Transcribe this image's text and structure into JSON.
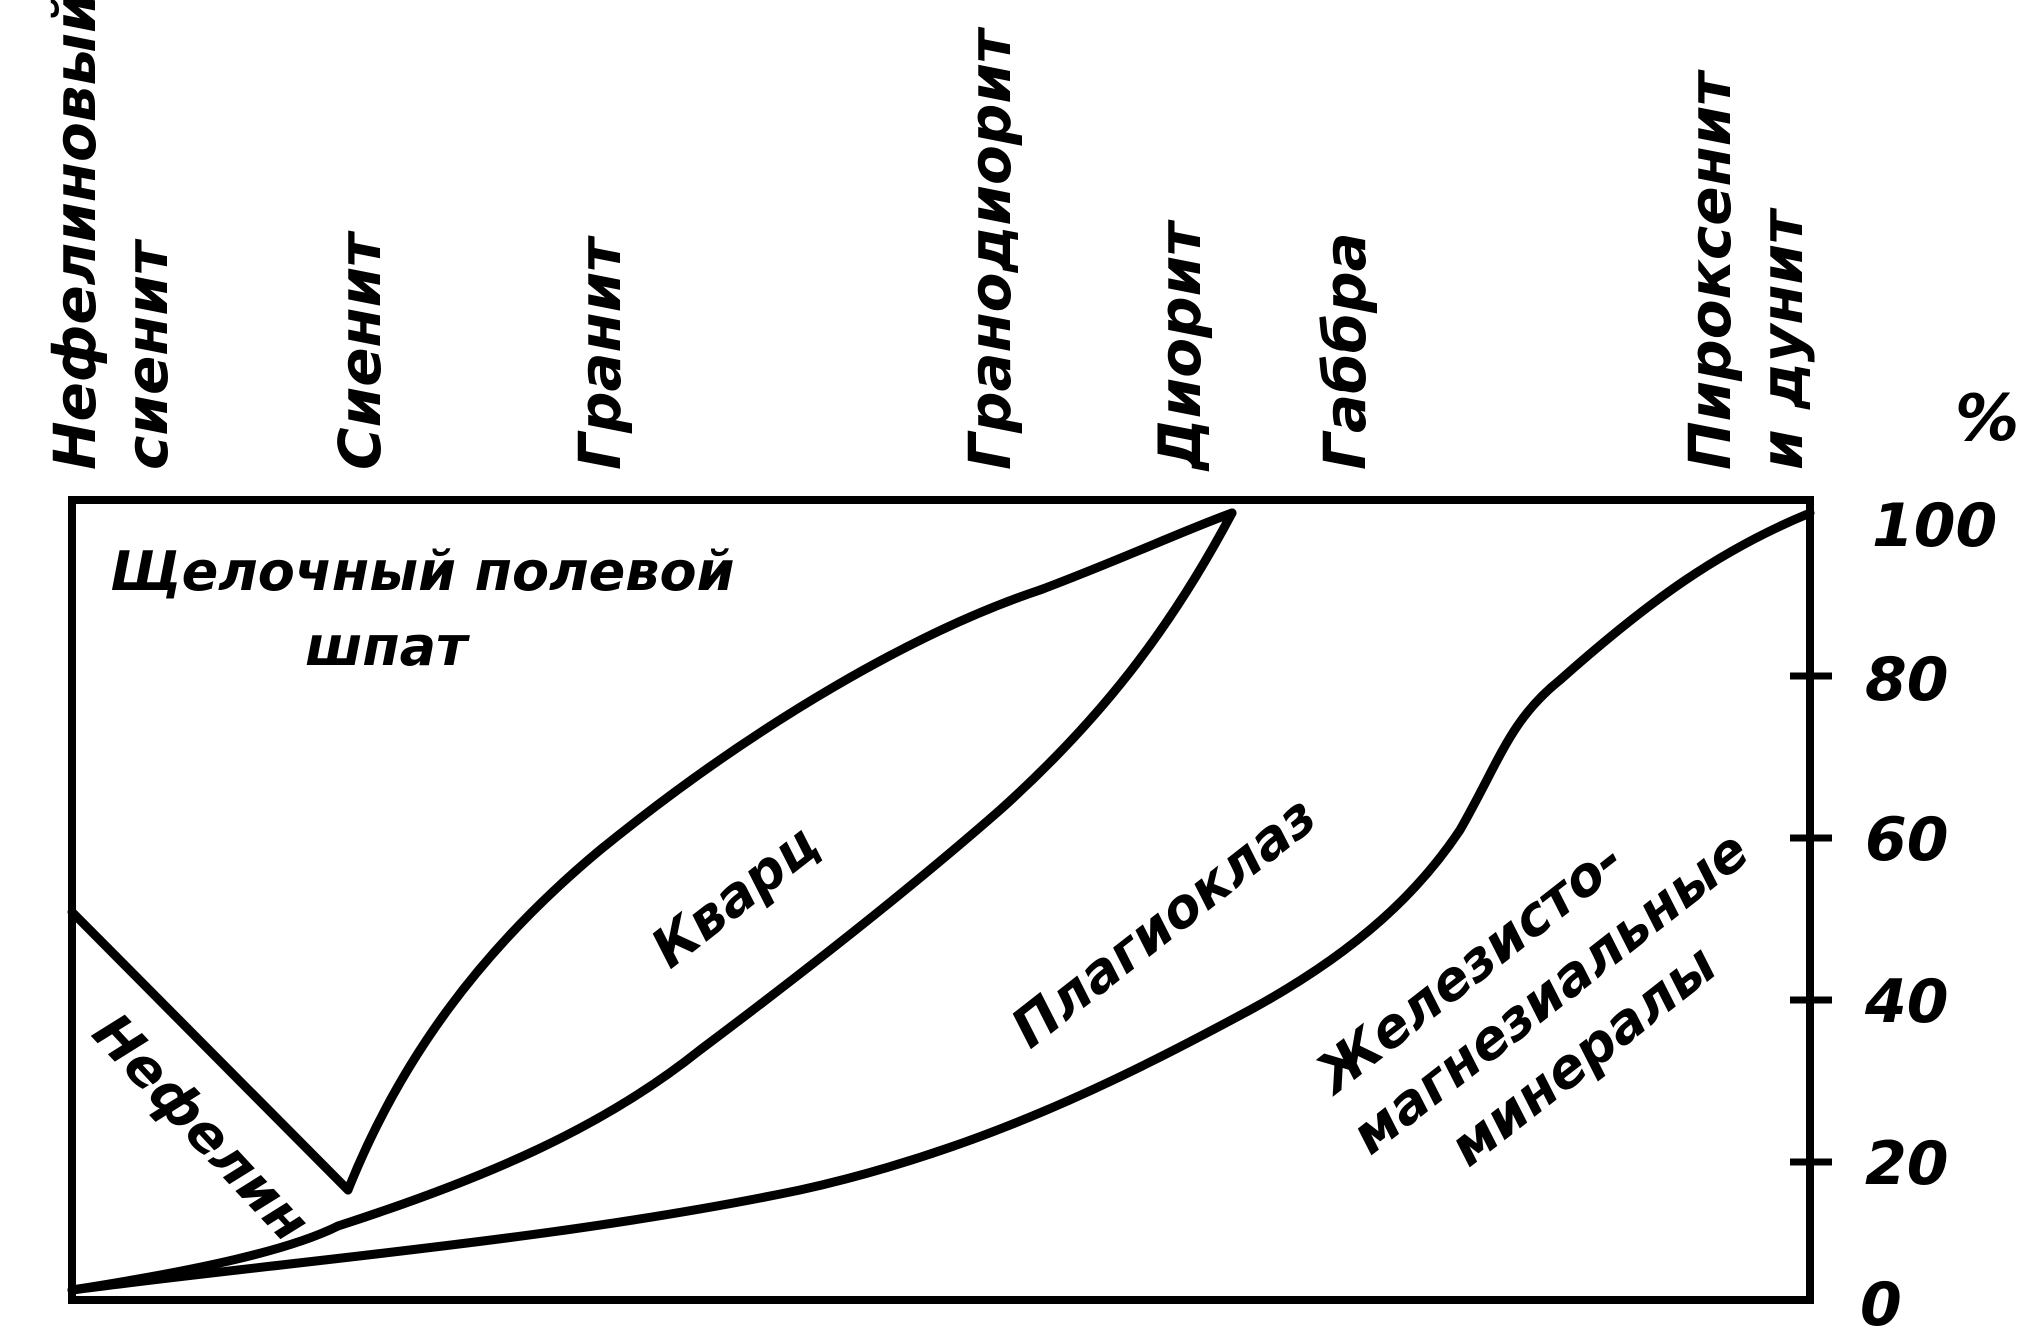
{
  "rock_types": [
    {
      "lines": [
        "Нефелиновый",
        "сиенит"
      ]
    },
    {
      "lines": [
        "Сиенит"
      ]
    },
    {
      "lines": [
        "Гранит"
      ]
    },
    {
      "lines": [
        "Гранодиорит"
      ]
    },
    {
      "lines": [
        "Диорит"
      ]
    },
    {
      "lines": [
        "Габбра"
      ]
    },
    {
      "lines": [
        "Пироксенит",
        "и дунит"
      ]
    }
  ],
  "axis": {
    "unit": "%",
    "ticks": [
      "0",
      "20",
      "40",
      "60",
      "80",
      "100"
    ]
  },
  "regions": {
    "alkali_feldspar": [
      "Щелочный полевой",
      "шпат"
    ],
    "quartz": "Кварц",
    "plagioclase": "Плагиоклаз",
    "mafic": [
      "Железисто-",
      "магнезиальные",
      "минералы"
    ],
    "nepheline": "Нефелин"
  },
  "colors": {
    "ink": "#000000",
    "background": "#ffffff"
  }
}
